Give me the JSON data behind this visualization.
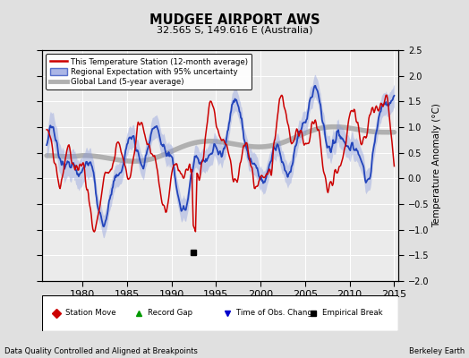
{
  "title": "MUDGEE AIRPORT AWS",
  "subtitle": "32.565 S, 149.616 E (Australia)",
  "xlabel_left": "Data Quality Controlled and Aligned at Breakpoints",
  "xlabel_right": "Berkeley Earth",
  "ylabel_right": "Temperature Anomaly (°C)",
  "xlim": [
    1975.5,
    2015.5
  ],
  "ylim": [
    -2.0,
    2.5
  ],
  "yticks": [
    -2,
    -1.5,
    -1,
    -0.5,
    0,
    0.5,
    1,
    1.5,
    2,
    2.5
  ],
  "xticks": [
    1980,
    1985,
    1990,
    1995,
    2000,
    2005,
    2010,
    2015
  ],
  "bg_color": "#e0e0e0",
  "plot_bg_color": "#ebebeb",
  "legend_labels": [
    "This Temperature Station (12-month average)",
    "Regional Expectation with 95% uncertainty",
    "Global Land (5-year average)"
  ],
  "red_color": "#cc0000",
  "blue_color": "#2244bb",
  "blue_fill": "#8899dd",
  "gray_color": "#b0b0b0",
  "marker_legend": [
    "Station Move",
    "Record Gap",
    "Time of Obs. Change",
    "Empirical Break"
  ],
  "marker_colors": [
    "#cc0000",
    "#009900",
    "#0000cc",
    "#000000"
  ],
  "empirical_break_year": 1992.5,
  "empirical_break_value": -1.45
}
